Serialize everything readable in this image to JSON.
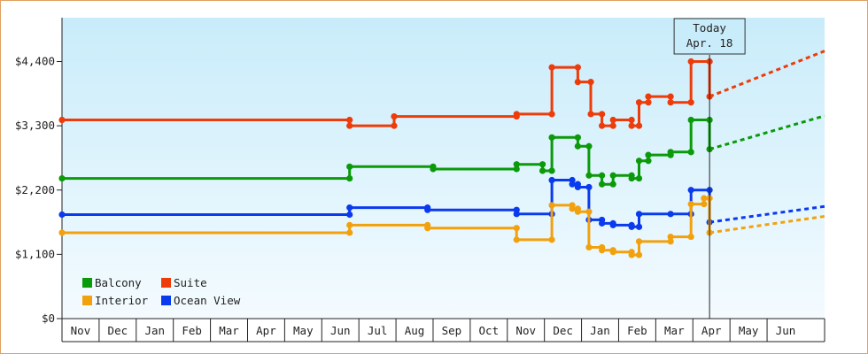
{
  "chart_data": {
    "type": "line",
    "y_axis": {
      "ticks": [
        {
          "value": 0,
          "label": "$0"
        },
        {
          "value": 1100,
          "label": "$1,100"
        },
        {
          "value": 2200,
          "label": "$2,200"
        },
        {
          "value": 3300,
          "label": "$3,300"
        },
        {
          "value": 4400,
          "label": "$4,400"
        }
      ],
      "range": [
        0,
        5150
      ]
    },
    "x_axis": {
      "months": [
        "Nov",
        "Dec",
        "Jan",
        "Feb",
        "Mar",
        "Apr",
        "May",
        "Jun",
        "Jul",
        "Aug",
        "Sep",
        "Oct",
        "Nov",
        "Dec",
        "Jan",
        "Feb",
        "Mar",
        "Apr",
        "May",
        "Jun"
      ],
      "range": [
        0,
        20.55
      ]
    },
    "today_marker": {
      "line1": "Today",
      "line2": "Apr. 18",
      "x": 17.45
    },
    "legend": {
      "placement": "bottom-left"
    },
    "colors": {
      "plot_gradient_top": "#c9ecfa",
      "plot_gradient_bottom": "#f4fbff",
      "frame": "#e0a060"
    },
    "series": [
      {
        "name": "Suite",
        "color": "#ee3b0a",
        "points": [
          [
            0,
            3400
          ],
          [
            7.75,
            3400
          ],
          [
            7.75,
            3300
          ],
          [
            8.95,
            3300
          ],
          [
            8.95,
            3460
          ],
          [
            12.25,
            3460
          ],
          [
            12.25,
            3500
          ],
          [
            13.2,
            3500
          ],
          [
            13.2,
            4300
          ],
          [
            13.9,
            4300
          ],
          [
            13.9,
            4050
          ],
          [
            14.25,
            4050
          ],
          [
            14.25,
            3500
          ],
          [
            14.55,
            3500
          ],
          [
            14.55,
            3300
          ],
          [
            14.85,
            3300
          ],
          [
            14.85,
            3400
          ],
          [
            15.35,
            3400
          ],
          [
            15.35,
            3300
          ],
          [
            15.55,
            3300
          ],
          [
            15.55,
            3700
          ],
          [
            15.8,
            3700
          ],
          [
            15.8,
            3800
          ],
          [
            16.4,
            3800
          ],
          [
            16.4,
            3700
          ],
          [
            16.95,
            3700
          ],
          [
            16.95,
            4400
          ],
          [
            17.45,
            4400
          ],
          [
            17.45,
            3800
          ]
        ],
        "projection": [
          [
            17.45,
            3800
          ],
          [
            20.55,
            4580
          ]
        ]
      },
      {
        "name": "Balcony",
        "color": "#0a9a0a",
        "points": [
          [
            0,
            2400
          ],
          [
            7.75,
            2400
          ],
          [
            7.75,
            2600
          ],
          [
            10.0,
            2600
          ],
          [
            10.0,
            2560
          ],
          [
            12.25,
            2560
          ],
          [
            12.25,
            2640
          ],
          [
            12.95,
            2640
          ],
          [
            12.95,
            2530
          ],
          [
            13.2,
            2530
          ],
          [
            13.2,
            3100
          ],
          [
            13.9,
            3100
          ],
          [
            13.9,
            2950
          ],
          [
            14.2,
            2950
          ],
          [
            14.2,
            2450
          ],
          [
            14.55,
            2450
          ],
          [
            14.55,
            2300
          ],
          [
            14.85,
            2300
          ],
          [
            14.85,
            2450
          ],
          [
            15.35,
            2450
          ],
          [
            15.35,
            2400
          ],
          [
            15.55,
            2400
          ],
          [
            15.55,
            2700
          ],
          [
            15.8,
            2700
          ],
          [
            15.8,
            2800
          ],
          [
            16.4,
            2800
          ],
          [
            16.4,
            2850
          ],
          [
            16.95,
            2850
          ],
          [
            16.95,
            3400
          ],
          [
            17.45,
            3400
          ],
          [
            17.45,
            2900
          ]
        ],
        "projection": [
          [
            17.45,
            2900
          ],
          [
            20.55,
            3470
          ]
        ]
      },
      {
        "name": "Ocean View",
        "color": "#0a3aee",
        "points": [
          [
            0,
            1780
          ],
          [
            7.75,
            1780
          ],
          [
            7.75,
            1900
          ],
          [
            9.85,
            1900
          ],
          [
            9.85,
            1860
          ],
          [
            12.25,
            1860
          ],
          [
            12.25,
            1790
          ],
          [
            13.2,
            1790
          ],
          [
            13.2,
            2370
          ],
          [
            13.75,
            2370
          ],
          [
            13.75,
            2300
          ],
          [
            13.9,
            2300
          ],
          [
            13.9,
            2250
          ],
          [
            14.2,
            2250
          ],
          [
            14.2,
            1690
          ],
          [
            14.55,
            1690
          ],
          [
            14.55,
            1630
          ],
          [
            14.85,
            1630
          ],
          [
            14.85,
            1600
          ],
          [
            15.35,
            1600
          ],
          [
            15.35,
            1570
          ],
          [
            15.55,
            1570
          ],
          [
            15.55,
            1790
          ],
          [
            16.4,
            1790
          ],
          [
            16.95,
            1790
          ],
          [
            16.95,
            2200
          ],
          [
            17.45,
            2200
          ],
          [
            17.45,
            1650
          ]
        ],
        "projection": [
          [
            17.45,
            1650
          ],
          [
            20.55,
            1920
          ]
        ]
      },
      {
        "name": "Interior",
        "color": "#f2a10e",
        "points": [
          [
            0,
            1470
          ],
          [
            7.75,
            1470
          ],
          [
            7.75,
            1600
          ],
          [
            9.85,
            1600
          ],
          [
            9.85,
            1550
          ],
          [
            12.25,
            1550
          ],
          [
            12.25,
            1350
          ],
          [
            13.2,
            1350
          ],
          [
            13.2,
            1940
          ],
          [
            13.75,
            1940
          ],
          [
            13.75,
            1880
          ],
          [
            13.9,
            1880
          ],
          [
            13.9,
            1830
          ],
          [
            14.2,
            1830
          ],
          [
            14.2,
            1220
          ],
          [
            14.55,
            1220
          ],
          [
            14.55,
            1170
          ],
          [
            14.85,
            1170
          ],
          [
            14.85,
            1140
          ],
          [
            15.35,
            1140
          ],
          [
            15.35,
            1090
          ],
          [
            15.55,
            1090
          ],
          [
            15.55,
            1320
          ],
          [
            16.4,
            1320
          ],
          [
            16.4,
            1400
          ],
          [
            16.95,
            1400
          ],
          [
            16.95,
            1960
          ],
          [
            17.3,
            1960
          ],
          [
            17.3,
            2060
          ],
          [
            17.45,
            2060
          ],
          [
            17.45,
            1470
          ]
        ],
        "projection": [
          [
            17.45,
            1470
          ],
          [
            20.55,
            1750
          ]
        ]
      }
    ]
  }
}
